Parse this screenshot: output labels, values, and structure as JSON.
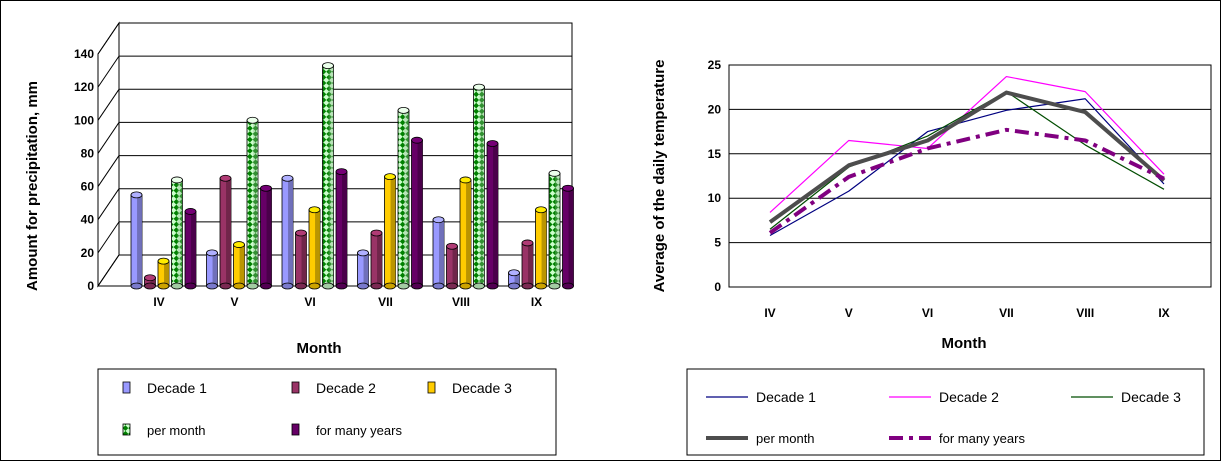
{
  "chart_data": [
    {
      "type": "bar",
      "style": "3d-cylinder",
      "xlabel": "Month",
      "ylabel": "Amount for precipitation, mm",
      "ylim": [
        0,
        140
      ],
      "yticks": [
        "0",
        "20",
        "40",
        "60",
        "80",
        "100",
        "120",
        "140"
      ],
      "categories": [
        "IV",
        "V",
        "VI",
        "VII",
        "VIII",
        "IX"
      ],
      "grid": true,
      "legend_position": "bottom",
      "series": [
        {
          "name": "Decade 1",
          "color": "#9999ff",
          "values": [
            55,
            20,
            65,
            20,
            40,
            8
          ]
        },
        {
          "name": "Decade 2",
          "color": "#993366",
          "values": [
            5,
            65,
            32,
            32,
            24,
            26
          ]
        },
        {
          "name": "Decade 3",
          "color": "#ffcc00",
          "values": [
            15,
            25,
            46,
            66,
            64,
            46
          ]
        },
        {
          "name": "per month",
          "color": "#ccffcc",
          "values": [
            64,
            100,
            133,
            106,
            120,
            68
          ]
        },
        {
          "name": "for many years",
          "color": "#660066",
          "values": [
            45,
            59,
            69,
            88,
            86,
            59
          ]
        }
      ]
    },
    {
      "type": "line",
      "xlabel": "Month",
      "ylabel": "Average of the daily temperature",
      "ylim": [
        0,
        25
      ],
      "yticks": [
        "0",
        "5",
        "10",
        "15",
        "20",
        "25"
      ],
      "categories": [
        "IV",
        "V",
        "VI",
        "VII",
        "VIII",
        "IX"
      ],
      "grid": true,
      "legend_position": "bottom",
      "series": [
        {
          "name": "Decade 1",
          "color": "#000080",
          "values": [
            5.8,
            10.8,
            17.5,
            19.9,
            21.2,
            11.6
          ]
        },
        {
          "name": "Decade 2",
          "color": "#ff00ff",
          "values": [
            8.4,
            16.5,
            15.6,
            23.7,
            22.0,
            12.7
          ]
        },
        {
          "name": "Decade 3",
          "color": "#004d00",
          "values": [
            6.5,
            13.5,
            17.0,
            22.0,
            16.0,
            11.0
          ]
        },
        {
          "name": "per month",
          "color": "#4d4d4d",
          "values": [
            7.3,
            13.7,
            16.5,
            21.9,
            19.7,
            12.0
          ]
        },
        {
          "name": "for many years",
          "color": "#800080",
          "values": [
            6.1,
            12.4,
            15.6,
            17.7,
            16.5,
            12.2
          ]
        }
      ]
    }
  ]
}
